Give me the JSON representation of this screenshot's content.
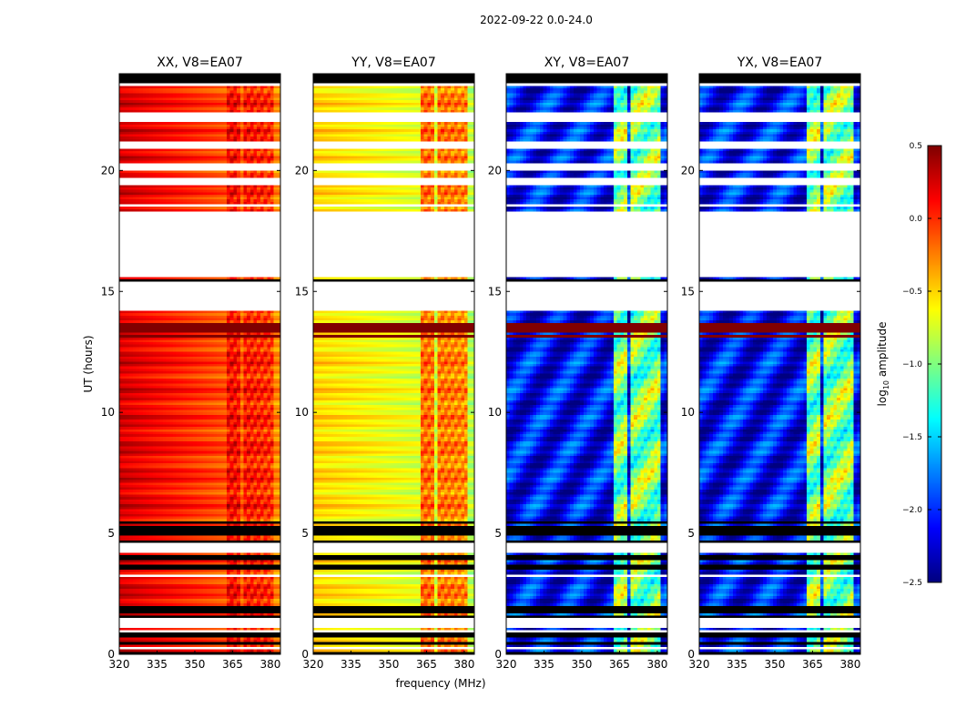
{
  "chart_data": {
    "type": "heatmap",
    "title": "2022-09-22 0.0-24.0",
    "xlabel": "frequency (MHz)",
    "ylabel": "UT (hours)",
    "xlim": [
      320,
      384
    ],
    "ylim": [
      0,
      24
    ],
    "xticks": [
      "320",
      "335",
      "350",
      "365",
      "380"
    ],
    "yticks": [
      "0",
      "5",
      "10",
      "15",
      "20"
    ],
    "colorbar": {
      "label": "log10 amplitude",
      "label_display": {
        "base": "log",
        "sub": "10",
        "rest": " amplitude"
      },
      "range": [
        -2.5,
        0.5
      ],
      "ticks": [
        "0.5",
        "0.0",
        "−0.5",
        "−1.0",
        "−1.5",
        "−2.0",
        "−2.5"
      ]
    },
    "panels": [
      {
        "name": "xx",
        "title": "XX, V8=EA07",
        "base": 0.25,
        "rfi_add": 0.25,
        "grad": -0.55
      },
      {
        "name": "yy",
        "title": "YY, V8=EA07",
        "base": -0.5,
        "rfi_add": 0.55,
        "grad": -0.35
      },
      {
        "name": "xy",
        "title": "XY, V8=EA07",
        "base": -2.1,
        "rfi_add": 1.1,
        "grad": 0.0
      },
      {
        "name": "yx",
        "title": "YX, V8=EA07",
        "base": -2.1,
        "rfi_add": 1.1,
        "grad": 0.0
      }
    ],
    "rfi_channels_mhz": [
      [
        363,
        368
      ],
      [
        368.8,
        373
      ],
      [
        373.8,
        377
      ],
      [
        378,
        381
      ]
    ],
    "flagged_blank_hours": [
      [
        0.18,
        0.28
      ],
      [
        0.92,
        1.0
      ],
      [
        1.05,
        1.45
      ],
      [
        3.25,
        3.3
      ],
      [
        4.15,
        4.55
      ],
      [
        5.68,
        5.72
      ],
      [
        14.22,
        14.38
      ],
      [
        14.45,
        15.45
      ],
      [
        15.62,
        18.3
      ],
      [
        18.5,
        18.6
      ],
      [
        19.42,
        19.68
      ],
      [
        20.05,
        20.28
      ],
      [
        20.9,
        21.18
      ],
      [
        22.0,
        22.45
      ],
      [
        23.0,
        23.05
      ],
      [
        23.55,
        23.65
      ]
    ],
    "flagged_black_hours": [
      [
        0.0,
        0.05
      ],
      [
        0.42,
        0.5
      ],
      [
        0.72,
        0.85
      ],
      [
        1.45,
        1.6
      ],
      [
        1.7,
        2.02
      ],
      [
        3.5,
        3.55
      ],
      [
        3.6,
        3.65
      ],
      [
        3.85,
        4.12
      ],
      [
        4.6,
        4.65
      ],
      [
        4.85,
        4.95
      ],
      [
        5.05,
        5.3
      ],
      [
        5.35,
        5.55
      ],
      [
        12.4,
        12.45
      ],
      [
        12.15,
        12.18
      ],
      [
        14.42,
        14.45
      ],
      [
        15.45,
        15.5
      ],
      [
        18.3,
        18.35
      ],
      [
        18.6,
        18.65
      ],
      [
        19.36,
        19.42
      ],
      [
        20.28,
        20.35
      ],
      [
        20.4,
        20.45
      ],
      [
        23.65,
        24.0
      ]
    ],
    "high_amp_hours": [
      [
        13.05,
        13.25
      ],
      [
        13.35,
        13.7
      ]
    ]
  }
}
